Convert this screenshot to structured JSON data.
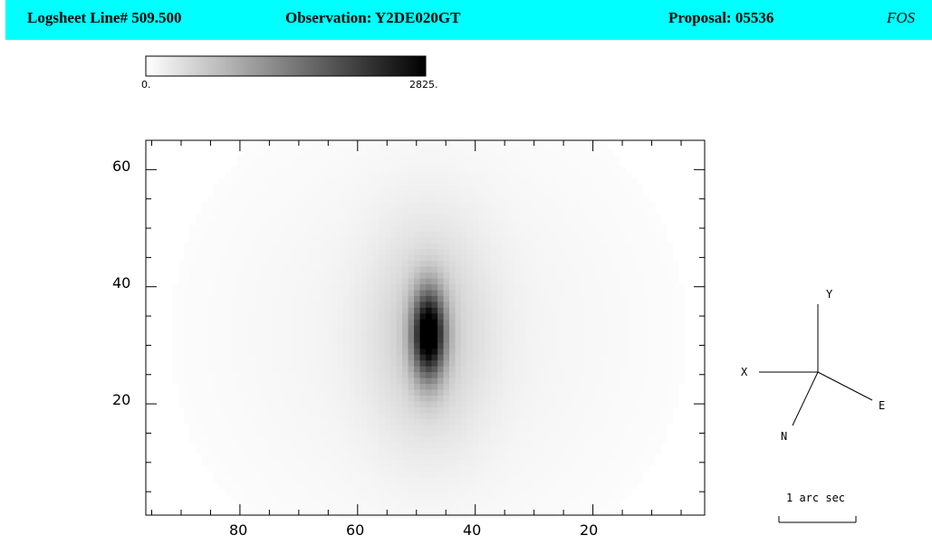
{
  "header": {
    "logsheet": "Logsheet Line# 509.500",
    "observation": "Observation: Y2DE020GT",
    "proposal": "Proposal: 05536",
    "instrument": "FOS",
    "background_color": "#00ffff"
  },
  "colorbar": {
    "min_label": "0.",
    "max_label": "2825.",
    "min_value": 0,
    "max_value": 2825
  },
  "compass": {
    "y_label": "Y",
    "x_label": "X",
    "e_label": "E",
    "n_label": "N",
    "scale_label": "1 arc sec"
  },
  "chart_data": {
    "type": "heatmap",
    "title": "",
    "xlabel": "",
    "ylabel": "",
    "xlim": [
      96,
      1
    ],
    "ylim": [
      1,
      65
    ],
    "x_ticks": [
      80,
      60,
      40,
      20
    ],
    "x_tick_labels": [
      "80",
      "60",
      "40",
      "20"
    ],
    "y_ticks": [
      60,
      40,
      20
    ],
    "y_tick_labels": [
      "60",
      "40",
      "20"
    ],
    "colormap": "grayscale inverted (white = 0, black = max)",
    "value_range": [
      0,
      2825
    ],
    "source": {
      "center_x": 48,
      "center_y": 32,
      "peak_value": 2825,
      "description": "elongated vertical bright core with faint diffuse halo"
    }
  }
}
